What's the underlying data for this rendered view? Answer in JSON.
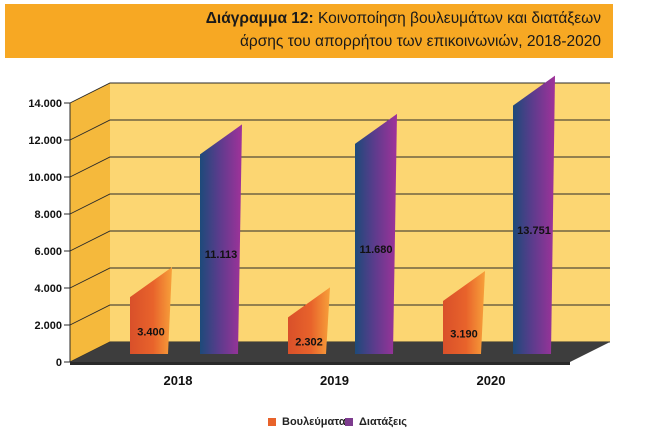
{
  "title": {
    "prefix": "Διάγραμμα 12:",
    "line1_text": " Κοινοποίηση βουλευμάτων και διατάξεων",
    "line2": "άρσης του απορρήτου των επικοινωνιών, 2018-2020"
  },
  "colors": {
    "title_bg": "#f7a823",
    "back_wall": "#fcd672",
    "side_wall": "#f5b93c",
    "floor": "#3d3d3d",
    "series_1": "#e8632b",
    "series_2": "#7d3c8e"
  },
  "chart_data": {
    "type": "bar",
    "categories": [
      "2018",
      "2019",
      "2020"
    ],
    "series": [
      {
        "name": "Βουλεύματα",
        "values": [
          3400,
          2302,
          3190
        ],
        "labels": [
          "3.400",
          "2.302",
          "3.190"
        ]
      },
      {
        "name": "Διατάξεις",
        "values": [
          11113,
          11680,
          13751
        ],
        "labels": [
          "11.113",
          "11.680",
          "13.751"
        ]
      }
    ],
    "yticks": [
      "0",
      "2.000",
      "4.000",
      "6.000",
      "8.000",
      "10.000",
      "12.000",
      "14.000"
    ],
    "ylim": [
      0,
      14000
    ],
    "legend_position": "bottom",
    "style": "3d-columns"
  }
}
